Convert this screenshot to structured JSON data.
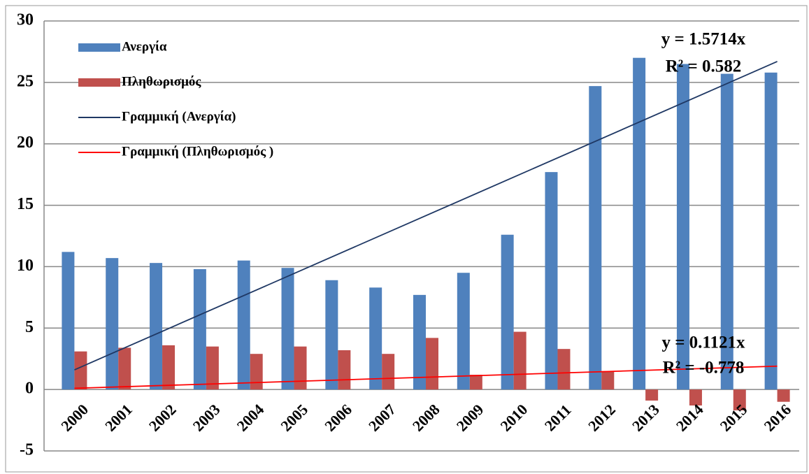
{
  "chart_data": {
    "type": "bar",
    "categories": [
      "2000",
      "2001",
      "2002",
      "2003",
      "2004",
      "2005",
      "2006",
      "2007",
      "2008",
      "2009",
      "2010",
      "2011",
      "2012",
      "2013",
      "2014",
      "2015",
      "2016"
    ],
    "series": [
      {
        "name": "Ανεργία",
        "color": "#4f81bd",
        "values": [
          11.2,
          10.7,
          10.3,
          9.8,
          10.5,
          9.9,
          8.9,
          8.3,
          7.7,
          9.5,
          12.6,
          17.7,
          24.7,
          27.0,
          26.5,
          25.7,
          25.8
        ],
        "trend": {
          "name": "Γραμμική (Ανεργία)",
          "color": "#1f3864",
          "values": [
            1.6,
            26.7
          ],
          "equation": "y = 1.5714x",
          "r2": "R² = 0.582"
        }
      },
      {
        "name": "Πληθωρισμός",
        "color": "#c0504d",
        "values": [
          3.1,
          3.4,
          3.6,
          3.5,
          2.9,
          3.5,
          3.2,
          2.9,
          4.2,
          1.2,
          4.7,
          3.3,
          1.5,
          -0.9,
          -1.3,
          -1.7,
          -1.0
        ],
        "trend": {
          "name": "Γραμμική (Πληθωρισμός )",
          "color": "#ff0000",
          "values": [
            0.1,
            1.9
          ],
          "equation": "y = 0.1121x",
          "r2": "R² = -0.778"
        }
      }
    ],
    "ylim": [
      -5,
      30
    ],
    "yticks": [
      -5,
      0,
      5,
      10,
      15,
      20,
      25,
      30
    ],
    "grid": true
  }
}
